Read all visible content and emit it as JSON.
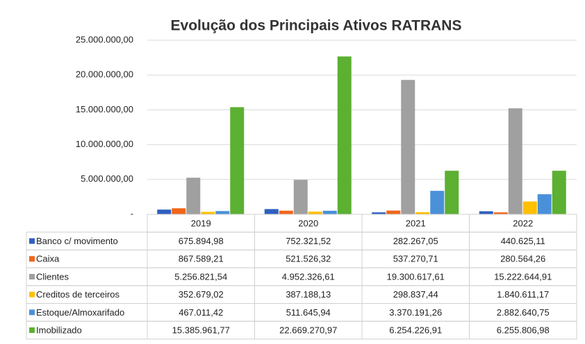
{
  "chart_data": {
    "type": "bar",
    "title": "Evolução dos Principais Ativos RATRANS",
    "categories": [
      "2019",
      "2020",
      "2021",
      "2022"
    ],
    "series": [
      {
        "name": "Banco c/ movimento",
        "color": "#2f5fbf",
        "values": [
          675894.98,
          752321.52,
          282267.05,
          440625.11
        ],
        "value_labels": [
          "675.894,98",
          "752.321,52",
          "282.267,05",
          "440.625,11"
        ]
      },
      {
        "name": "Caixa",
        "color": "#f0661a",
        "values": [
          867589.21,
          521526.32,
          537270.71,
          280564.26
        ],
        "value_labels": [
          "867.589,21",
          "521.526,32",
          "537.270,71",
          "280.564,26"
        ]
      },
      {
        "name": "Clientes",
        "color": "#a0a0a0",
        "values": [
          5256821.54,
          4952326.61,
          19300617.61,
          15222644.91
        ],
        "value_labels": [
          "5.256.821,54",
          "4.952.326,61",
          "19.300.617,61",
          "15.222.644,91"
        ]
      },
      {
        "name": "Creditos de terceiros",
        "color": "#ffc000",
        "values": [
          352679.02,
          387188.13,
          298837.44,
          1840611.17
        ],
        "value_labels": [
          "352.679,02",
          "387.188,13",
          "298.837,44",
          "1.840.611,17"
        ]
      },
      {
        "name": "Estoque/Almoxarifado",
        "color": "#4a90d9",
        "values": [
          467011.42,
          511645.94,
          3370191.26,
          2882640.75
        ],
        "value_labels": [
          "467.011,42",
          "511.645,94",
          "3.370.191,26",
          "2.882.640,75"
        ]
      },
      {
        "name": "Imobilizado",
        "color": "#5cb032",
        "values": [
          15385961.77,
          22669270.97,
          6254226.91,
          6255806.98
        ],
        "value_labels": [
          "15.385.961,77",
          "22.669.270,97",
          "6.254.226,91",
          "6.255.806,98"
        ]
      }
    ],
    "ylim": [
      0,
      25000000
    ],
    "yticks": [
      {
        "value": 0,
        "label": "-"
      },
      {
        "value": 5000000,
        "label": "5.000.000,00"
      },
      {
        "value": 10000000,
        "label": "10.000.000,00"
      },
      {
        "value": 15000000,
        "label": "15.000.000,00"
      },
      {
        "value": 20000000,
        "label": "20.000.000,00"
      },
      {
        "value": 25000000,
        "label": "25.000.000,00"
      }
    ],
    "grid": true
  }
}
